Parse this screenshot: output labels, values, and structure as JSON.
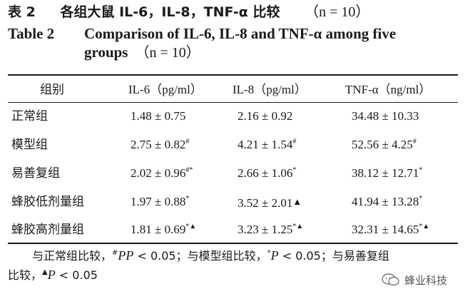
{
  "title_cn": {
    "label": "表 2",
    "text": "各组大鼠 IL-6，IL-8，TNF-α 比较",
    "n": "（n = 10）"
  },
  "title_en": {
    "label": "Table 2",
    "line1": "Comparison of IL-6, IL-8 and TNF-α among five",
    "line2": "groups",
    "n": "（n = 10）"
  },
  "table": {
    "headers": [
      "组别",
      "IL-6（pg/ml）",
      "IL-8（pg/ml）",
      "TNF-α（ng/ml）"
    ],
    "rows": [
      {
        "group": "正常组",
        "il6": "1.48 ± 0.75",
        "il6_mark": "",
        "il8": "2.16 ± 0.92",
        "il8_mark": "",
        "tnf": "34.48 ± 10.33",
        "tnf_mark": ""
      },
      {
        "group": "模型组",
        "il6": "2.75 ± 0.82",
        "il6_mark": "#",
        "il8": "4.21 ± 1.54",
        "il8_mark": "#",
        "tnf": "52.56 ± 4.25",
        "tnf_mark": "#"
      },
      {
        "group": "易善复组",
        "il6": "2.02 ± 0.96",
        "il6_mark": "#*",
        "il8": "2.66 ± 1.06",
        "il8_mark": "*",
        "tnf": "38.12 ± 12.71",
        "tnf_mark": "*"
      },
      {
        "group": "蜂胶低剂量组",
        "il6": "1.97 ± 0.88",
        "il6_mark": "*",
        "il8": "3.52 ± 2.01",
        "il8_mark": "▲",
        "tnf": "41.94 ± 13.28",
        "tnf_mark": "*"
      },
      {
        "group": "蜂胶高剂量组",
        "il6": "1.81 ± 0.69",
        "il6_mark": "*▲",
        "il8": "3.23 ± 1.25",
        "il8_mark": "*▲",
        "tnf": "32.31 ± 14.65",
        "tnf_mark": "*▲"
      }
    ]
  },
  "note": {
    "p1": "与正常组比较，",
    "m1": "#",
    "t1": "P < 0.05；与模型组比较，",
    "m2": "*",
    "t2": "P < 0.05；与易善复组",
    "p3": "比较，",
    "m3": "▲",
    "t3": "P < 0.05"
  },
  "watermark": {
    "text": "蜂业科技",
    "icon": "wechat-icon"
  }
}
